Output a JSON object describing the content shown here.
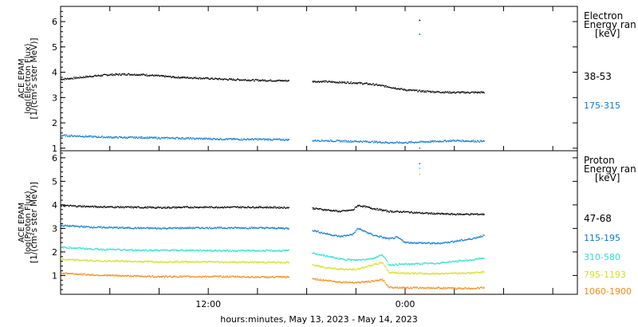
{
  "chart_data": [
    {
      "type": "scatter",
      "panel": "electron",
      "ylabel_lines": [
        "ACE EPAM",
        "log(Electron Flux)",
        "[1/(cm²s ster MeV)]"
      ],
      "ylim": [
        0.9,
        6.6
      ],
      "yticks": [
        1,
        2,
        3,
        4,
        5,
        6
      ],
      "legend_title": [
        "Electron",
        "Energy ran",
        "[keV]"
      ],
      "legend_placement": "right",
      "grid": false,
      "series": [
        {
          "name": "38-53",
          "color": "#000000",
          "values": [
            [
              0,
              3.72
            ],
            [
              1,
              3.78
            ],
            [
              2,
              3.85
            ],
            [
              3,
              3.9
            ],
            [
              4,
              3.92
            ],
            [
              5,
              3.9
            ],
            [
              6,
              3.85
            ],
            [
              7,
              3.8
            ],
            [
              8,
              3.78
            ],
            [
              9,
              3.75
            ],
            [
              10,
              3.72
            ],
            [
              11,
              3.7
            ],
            [
              12,
              3.68
            ],
            [
              13,
              3.67
            ],
            [
              14,
              3.66
            ],
            [
              15,
              3.64
            ],
            [
              16,
              3.63
            ],
            [
              17,
              3.6
            ],
            [
              18,
              3.58
            ],
            [
              19,
              3.52
            ],
            [
              20,
              3.42
            ],
            [
              21,
              3.3
            ],
            [
              22,
              3.25
            ],
            [
              23,
              3.22
            ],
            [
              24,
              3.2
            ],
            [
              25,
              3.2
            ],
            [
              25.8,
              3.2
            ]
          ],
          "outliers": [
            [
              21.85,
              6.05
            ]
          ]
        },
        {
          "name": "175-315",
          "color": "#0a78d2",
          "values": [
            [
              0,
              1.5
            ],
            [
              1,
              1.48
            ],
            [
              2,
              1.45
            ],
            [
              3,
              1.43
            ],
            [
              4,
              1.42
            ],
            [
              5,
              1.42
            ],
            [
              6,
              1.4
            ],
            [
              7,
              1.4
            ],
            [
              8,
              1.38
            ],
            [
              9,
              1.37
            ],
            [
              10,
              1.36
            ],
            [
              11,
              1.35
            ],
            [
              12,
              1.35
            ],
            [
              13,
              1.34
            ],
            [
              14,
              1.33
            ],
            [
              15,
              1.3
            ],
            [
              16,
              1.3
            ],
            [
              17,
              1.28
            ],
            [
              18,
              1.27
            ],
            [
              19,
              1.25
            ],
            [
              20,
              1.22
            ],
            [
              21,
              1.22
            ],
            [
              22,
              1.25
            ],
            [
              23,
              1.27
            ],
            [
              24,
              1.3
            ],
            [
              25,
              1.28
            ],
            [
              25.8,
              1.27
            ]
          ],
          "outliers": [
            [
              21.85,
              5.5
            ],
            [
              21.85,
              1.0
            ]
          ]
        }
      ]
    },
    {
      "type": "scatter",
      "panel": "proton",
      "ylabel_lines": [
        "ACE EPAM",
        "log(Proton Flux)",
        "[1/(cm²s ster MeV)]"
      ],
      "ylim": [
        0.2,
        6.3
      ],
      "yticks": [
        1,
        2,
        3,
        4,
        5,
        6
      ],
      "legend_title": [
        "Proton",
        "Energy ran",
        "[keV]"
      ],
      "legend_placement": "right",
      "grid": false,
      "series": [
        {
          "name": "47-68",
          "color": "#000000",
          "values": [
            [
              0,
              3.97
            ],
            [
              2,
              3.92
            ],
            [
              4,
              3.9
            ],
            [
              6,
              3.88
            ],
            [
              8,
              3.9
            ],
            [
              10,
              3.9
            ],
            [
              12,
              3.9
            ],
            [
              14,
              3.88
            ],
            [
              15,
              3.88
            ],
            [
              16,
              3.8
            ],
            [
              17,
              3.72
            ],
            [
              17.8,
              3.78
            ],
            [
              18.1,
              3.98
            ],
            [
              19,
              3.85
            ],
            [
              20,
              3.72
            ],
            [
              21,
              3.7
            ],
            [
              22,
              3.65
            ],
            [
              23,
              3.62
            ],
            [
              24,
              3.6
            ],
            [
              25,
              3.6
            ],
            [
              25.8,
              3.6
            ]
          ]
        },
        {
          "name": "115-195",
          "color": "#0a78d2",
          "values": [
            [
              0,
              3.12
            ],
            [
              2,
              3.05
            ],
            [
              4,
              3.02
            ],
            [
              6,
              3.0
            ],
            [
              8,
              3.02
            ],
            [
              10,
              3.02
            ],
            [
              12,
              3.02
            ],
            [
              14,
              3.0
            ],
            [
              15,
              2.98
            ],
            [
              16,
              2.8
            ],
            [
              17,
              2.65
            ],
            [
              17.8,
              2.75
            ],
            [
              18.1,
              3.0
            ],
            [
              19,
              2.72
            ],
            [
              20,
              2.55
            ],
            [
              20.5,
              2.62
            ],
            [
              21,
              2.4
            ],
            [
              22,
              2.38
            ],
            [
              23,
              2.36
            ],
            [
              24,
              2.45
            ],
            [
              25,
              2.55
            ],
            [
              25.8,
              2.7
            ]
          ],
          "outliers": [
            [
              21.85,
              5.75
            ]
          ]
        },
        {
          "name": "310-580",
          "color": "#2ee0d0",
          "values": [
            [
              0,
              2.2
            ],
            [
              2,
              2.12
            ],
            [
              4,
              2.08
            ],
            [
              6,
              2.07
            ],
            [
              8,
              2.07
            ],
            [
              10,
              2.05
            ],
            [
              12,
              2.05
            ],
            [
              14,
              2.05
            ],
            [
              15,
              2.0
            ],
            [
              16,
              1.85
            ],
            [
              17,
              1.7
            ],
            [
              18,
              1.65
            ],
            [
              19,
              1.72
            ],
            [
              19.6,
              1.88
            ],
            [
              20,
              1.45
            ],
            [
              21,
              1.48
            ],
            [
              22,
              1.5
            ],
            [
              23,
              1.52
            ],
            [
              24,
              1.6
            ],
            [
              25,
              1.65
            ],
            [
              25.8,
              1.75
            ]
          ],
          "outliers": [
            [
              21.85,
              5.55
            ]
          ]
        },
        {
          "name": "795-1193",
          "color": "#d2e020",
          "values": [
            [
              0,
              1.68
            ],
            [
              2,
              1.62
            ],
            [
              4,
              1.6
            ],
            [
              6,
              1.58
            ],
            [
              8,
              1.58
            ],
            [
              10,
              1.57
            ],
            [
              12,
              1.56
            ],
            [
              14,
              1.55
            ],
            [
              15,
              1.5
            ],
            [
              16,
              1.35
            ],
            [
              17,
              1.27
            ],
            [
              18,
              1.25
            ],
            [
              19,
              1.45
            ],
            [
              19.6,
              1.55
            ],
            [
              20,
              1.12
            ],
            [
              21,
              1.1
            ],
            [
              22,
              1.08
            ],
            [
              23,
              1.08
            ],
            [
              24,
              1.1
            ],
            [
              25,
              1.1
            ],
            [
              25.8,
              1.15
            ]
          ],
          "outliers": [
            [
              21.85,
              5.3
            ]
          ]
        },
        {
          "name": "1060-1900",
          "color": "#f28a1a",
          "values": [
            [
              0,
              1.1
            ],
            [
              2,
              1.02
            ],
            [
              4,
              0.98
            ],
            [
              6,
              0.95
            ],
            [
              8,
              0.95
            ],
            [
              10,
              0.95
            ],
            [
              12,
              0.93
            ],
            [
              14,
              0.93
            ],
            [
              15,
              0.9
            ],
            [
              16,
              0.8
            ],
            [
              17,
              0.72
            ],
            [
              18,
              0.7
            ],
            [
              19,
              0.75
            ],
            [
              19.6,
              0.82
            ],
            [
              20,
              0.5
            ],
            [
              21,
              0.48
            ],
            [
              22,
              0.47
            ],
            [
              23,
              0.47
            ],
            [
              24,
              0.45
            ],
            [
              25,
              0.45
            ],
            [
              25.8,
              0.48
            ]
          ]
        }
      ]
    }
  ],
  "x_axis": {
    "label": "hours:minutes, May 13, 2023 - May 14, 2023",
    "range_hours": [
      0,
      31.5
    ],
    "ticks": [
      {
        "hour": 9,
        "label": "12:00"
      },
      {
        "hour": 21,
        "label": "0:00"
      }
    ],
    "minor_ticks_hours": [
      3,
      6,
      9,
      12,
      15,
      18,
      21,
      24,
      27,
      30
    ],
    "data_gap_hours": [
      [
        13.9,
        15.3
      ]
    ]
  }
}
